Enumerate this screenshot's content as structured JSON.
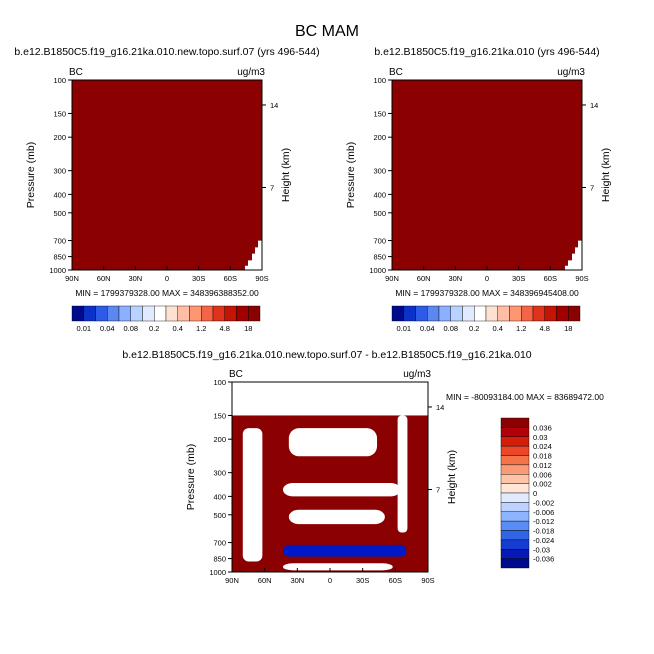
{
  "title": "BC MAM",
  "colors": {
    "dark_red": "#8b0000",
    "blue": "#0019c8",
    "white": "#ffffff"
  },
  "chart_data": [
    {
      "type": "heatmap",
      "title": "b.e12.B1850C5.f19_g16.21ka.010.new.topo.surf.07 (yrs 496-544)",
      "left_label": "BC",
      "right_label": "ug/m3",
      "xlabel": "",
      "ylabel": "Pressure (mb)",
      "ylabel_right": "Height (km)",
      "x_ticks": [
        "90N",
        "60N",
        "30N",
        "0",
        "30S",
        "60S",
        "90S"
      ],
      "y_ticks": [
        "100",
        "150",
        "200",
        "300",
        "400",
        "500",
        "700",
        "850",
        "1000"
      ],
      "y_right_ticks": [
        "14",
        "7"
      ],
      "stats": "MIN = 1799379328.00   MAX = 348396388352.00",
      "colorbar_labels": [
        "0.01",
        "0.04",
        "0.08",
        "0.2",
        "0.4",
        "1.2",
        "4.8",
        "18"
      ],
      "colorbar_colors": [
        "#000a8c",
        "#0a32c8",
        "#2d5ae6",
        "#5a87f0",
        "#8cafff",
        "#b9d2ff",
        "#e1ebff",
        "#ffffff",
        "#ffe1d2",
        "#ffbea5",
        "#ff9673",
        "#f56446",
        "#e1321e",
        "#c31405",
        "#a00000",
        "#8b0000"
      ]
    },
    {
      "type": "heatmap",
      "title": "b.e12.B1850C5.f19_g16.21ka.010 (yrs 496-544)",
      "left_label": "BC",
      "right_label": "ug/m3",
      "xlabel": "",
      "ylabel": "Pressure (mb)",
      "ylabel_right": "Height (km)",
      "x_ticks": [
        "90N",
        "60N",
        "30N",
        "0",
        "30S",
        "60S",
        "90S"
      ],
      "y_ticks": [
        "100",
        "150",
        "200",
        "300",
        "400",
        "500",
        "700",
        "850",
        "1000"
      ],
      "y_right_ticks": [
        "14",
        "7"
      ],
      "stats": "MIN = 1799379328.00   MAX = 348396945408.00",
      "colorbar_labels": [
        "0.01",
        "0.04",
        "0.08",
        "0.2",
        "0.4",
        "1.2",
        "4.8",
        "18"
      ],
      "colorbar_colors": [
        "#000a8c",
        "#0a32c8",
        "#2d5ae6",
        "#5a87f0",
        "#8cafff",
        "#b9d2ff",
        "#e1ebff",
        "#ffffff",
        "#ffe1d2",
        "#ffbea5",
        "#ff9673",
        "#f56446",
        "#e1321e",
        "#c31405",
        "#a00000",
        "#8b0000"
      ]
    },
    {
      "type": "heatmap",
      "title": "b.e12.B1850C5.f19_g16.21ka.010.new.topo.surf.07 - b.e12.B1850C5.f19_g16.21ka.010",
      "left_label": "BC",
      "right_label": "ug/m3",
      "xlabel": "",
      "ylabel": "Pressure (mb)",
      "ylabel_right": "Height (km)",
      "x_ticks": [
        "90N",
        "60N",
        "30N",
        "0",
        "30S",
        "60S",
        "90S"
      ],
      "y_ticks": [
        "100",
        "150",
        "200",
        "300",
        "400",
        "500",
        "700",
        "850",
        "1000"
      ],
      "y_right_ticks": [
        "14",
        "7"
      ],
      "stats": "MIN = -80093184.00   MAX = 83689472.00",
      "colorbar_labels": [
        "0.036",
        "0.03",
        "0.024",
        "0.018",
        "0.012",
        "0.006",
        "0.002",
        "0",
        "-0.002",
        "-0.006",
        "-0.012",
        "-0.018",
        "-0.024",
        "-0.03",
        "-0.036"
      ],
      "colorbar_colors": [
        "#8b0000",
        "#b4000a",
        "#d21e0a",
        "#eb4628",
        "#f5734b",
        "#fa9b78",
        "#ffc3a5",
        "#ffe6d7",
        "#e1ebff",
        "#bed2ff",
        "#8cb4ff",
        "#5a8cf5",
        "#3264e6",
        "#143cd2",
        "#0519b4",
        "#000a8c"
      ]
    }
  ]
}
